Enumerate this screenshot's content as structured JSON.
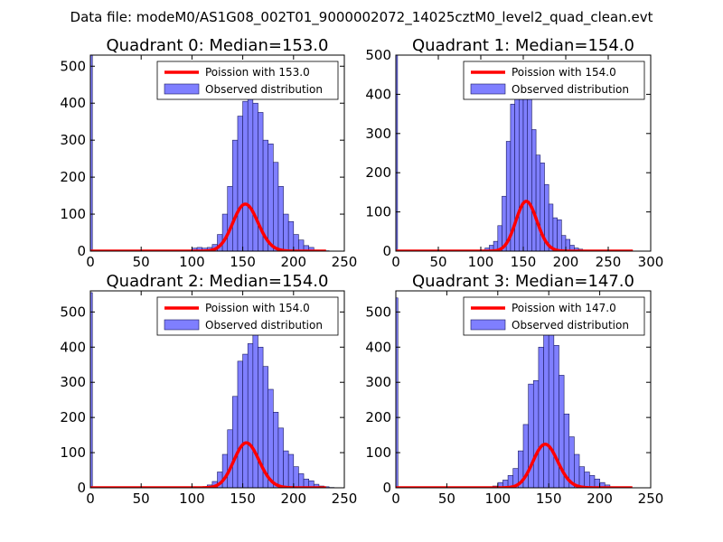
{
  "suptitle": "Data file: modeM0/AS1G08_002T01_9000002072_14025cztM0_level2_quad_clean.evt",
  "colors": {
    "line": "#ff0000",
    "bar_fill": "#7f7fff",
    "bar_edge": "#1a1a5e",
    "axes": "#000000"
  },
  "chart_data": [
    {
      "type": "bar",
      "title": "Quadrant 0: Median=153.0",
      "xlim": [
        0,
        250
      ],
      "ylim": [
        0,
        530
      ],
      "xticks": [
        0,
        50,
        100,
        150,
        200,
        250
      ],
      "yticks": [
        0,
        100,
        200,
        300,
        400,
        500
      ],
      "legend": {
        "location": "top-right",
        "line_label": "Poission with 153.0",
        "bar_label": "Observed distribution"
      },
      "lambda": 153.0,
      "bin_start": 100,
      "bin_width": 5,
      "hist": [
        8,
        10,
        8,
        10,
        18,
        45,
        100,
        175,
        300,
        365,
        405,
        435,
        400,
        375,
        300,
        290,
        240,
        175,
        100,
        80,
        45,
        30,
        15,
        10,
        3,
        1,
        1
      ],
      "zero_bin": {
        "x": 0,
        "width": 2,
        "value": 530
      }
    },
    {
      "type": "bar",
      "title": "Quadrant 1: Median=154.0",
      "xlim": [
        0,
        300
      ],
      "ylim": [
        0,
        500
      ],
      "xticks": [
        0,
        50,
        100,
        150,
        200,
        250,
        300
      ],
      "yticks": [
        0,
        100,
        200,
        300,
        400,
        500
      ],
      "legend": {
        "location": "top-right",
        "line_label": "Poission with 154.0",
        "bar_label": "Observed distribution"
      },
      "lambda": 154.0,
      "bin_start": 95,
      "bin_width": 5,
      "hist": [
        2,
        3,
        8,
        15,
        25,
        65,
        140,
        280,
        375,
        405,
        450,
        440,
        410,
        310,
        245,
        225,
        170,
        120,
        85,
        80,
        40,
        30,
        15,
        8,
        5,
        2
      ],
      "zero_bin": {
        "x": 0,
        "width": 2,
        "value": 500
      }
    },
    {
      "type": "bar",
      "title": "Quadrant 2: Median=154.0",
      "xlim": [
        0,
        250
      ],
      "ylim": [
        0,
        560
      ],
      "xticks": [
        0,
        50,
        100,
        150,
        200,
        250
      ],
      "yticks": [
        0,
        100,
        200,
        300,
        400,
        500
      ],
      "legend": {
        "location": "top-right",
        "line_label": "Poission with 154.0",
        "bar_label": "Observed distribution"
      },
      "lambda": 154.0,
      "bin_start": 110,
      "bin_width": 5,
      "hist": [
        3,
        8,
        18,
        45,
        95,
        165,
        260,
        360,
        380,
        410,
        460,
        400,
        345,
        280,
        215,
        170,
        105,
        95,
        60,
        40,
        25,
        20,
        10,
        5,
        3,
        1
      ],
      "zero_bin": {
        "x": 0,
        "width": 2,
        "value": 555
      }
    },
    {
      "type": "bar",
      "title": "Quadrant 3: Median=147.0",
      "xlim": [
        0,
        250
      ],
      "ylim": [
        0,
        560
      ],
      "xticks": [
        0,
        50,
        100,
        150,
        200,
        250
      ],
      "yticks": [
        0,
        100,
        200,
        300,
        400,
        500
      ],
      "legend": {
        "location": "top-right",
        "line_label": "Poission with 147.0",
        "bar_label": "Observed distribution"
      },
      "lambda": 147.0,
      "bin_start": 90,
      "bin_width": 5,
      "hist": [
        3,
        5,
        15,
        22,
        35,
        55,
        105,
        180,
        295,
        305,
        400,
        480,
        500,
        405,
        320,
        210,
        145,
        95,
        60,
        45,
        35,
        25,
        15,
        8,
        3
      ],
      "zero_bin": {
        "x": 0,
        "width": 2,
        "value": 540
      }
    }
  ]
}
